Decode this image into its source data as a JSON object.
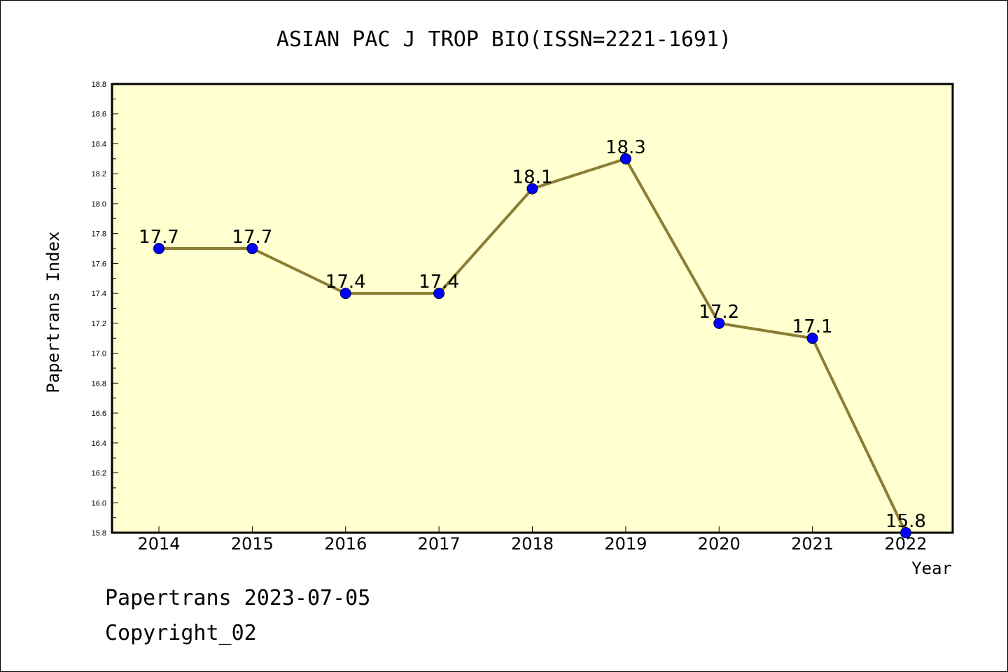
{
  "chart_data": {
    "type": "line",
    "title": "ASIAN PAC J TROP BIO(ISSN=2221-1691)",
    "xlabel": "Year",
    "ylabel": "Papertrans Index",
    "categories": [
      "2014",
      "2015",
      "2016",
      "2017",
      "2018",
      "2019",
      "2020",
      "2021",
      "2022"
    ],
    "values": [
      17.7,
      17.7,
      17.4,
      17.4,
      18.1,
      18.3,
      17.2,
      17.1,
      15.8
    ],
    "data_labels": [
      "17.7",
      "17.7",
      "17.4",
      "17.4",
      "18.1",
      "18.3",
      "17.2",
      "17.1",
      "15.8"
    ],
    "ylim": [
      15.8,
      18.8
    ],
    "yticks": [
      "15.8",
      "16.0",
      "16.2",
      "16.4",
      "16.6",
      "16.8",
      "17.0",
      "17.2",
      "17.4",
      "17.6",
      "17.8",
      "18.0",
      "18.2",
      "18.4",
      "18.6",
      "18.8"
    ],
    "grid": false,
    "colors": {
      "plot_background": "#ffffd0",
      "line": "#8b7d33",
      "marker": "#0000ff"
    }
  },
  "footer": {
    "line1": "Papertrans 2023-07-05",
    "line2": "Copyright_02"
  }
}
